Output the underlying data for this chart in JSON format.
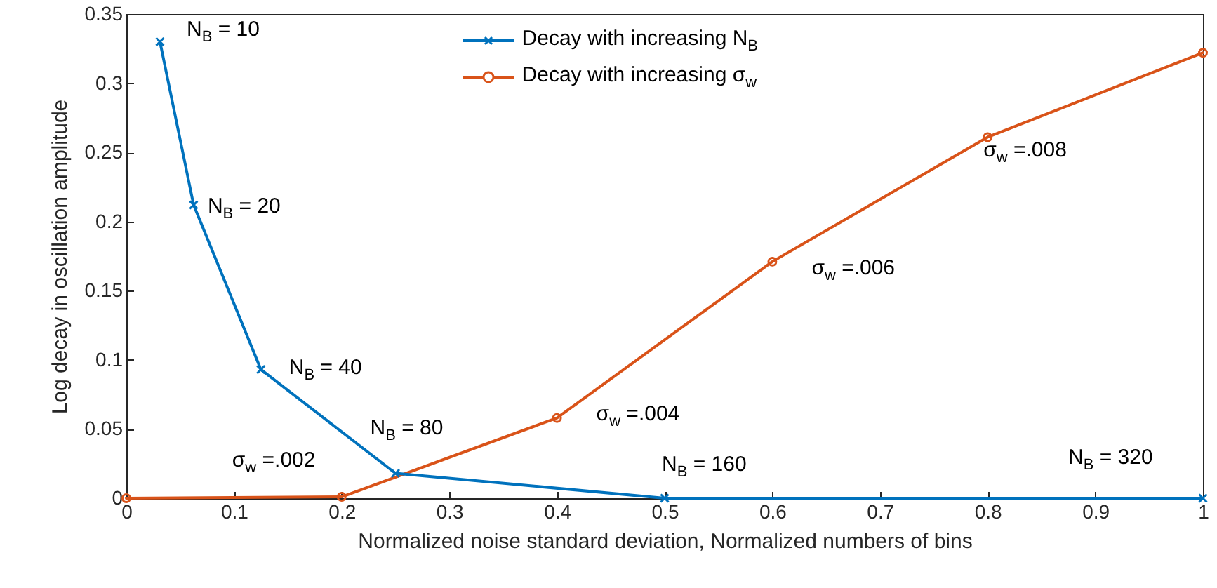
{
  "chart_data": {
    "type": "line",
    "xlabel": "Normalized noise standard deviation, Normalized numbers of bins",
    "ylabel": "Log decay in oscillation amplitude",
    "xlim": [
      0,
      1
    ],
    "xticks": [
      0,
      0.1,
      0.2,
      0.3,
      0.4,
      0.5,
      0.6,
      0.7,
      0.8,
      0.9,
      1
    ],
    "ylim": [
      0,
      0.35
    ],
    "yticks": [
      0,
      0.05,
      0.1,
      0.15,
      0.2,
      0.25,
      0.3,
      0.35
    ],
    "grid": false,
    "legend": "top",
    "line_style": "solid",
    "series": [
      {
        "name": "Decay with increasing N$_{B}$",
        "color": "#0072bd",
        "marker": "cross",
        "x": [
          0.03125,
          0.0625,
          0.125,
          0.25,
          0.5,
          1
        ],
        "values": [
          0.33,
          0.212,
          0.093,
          0.018,
          0,
          0
        ]
      },
      {
        "name": "Decay with increasing σ$_{w}$",
        "color": "#d95319",
        "marker": "circle",
        "x": [
          0,
          0.2,
          0.4,
          0.6,
          0.8,
          1
        ],
        "values": [
          0,
          0.001,
          0.058,
          0.171,
          0.261,
          0.322
        ]
      }
    ],
    "annotations": [
      {
        "text": "N$_{B}$ = 10",
        "x": 0.03125,
        "y": 0.33
      },
      {
        "text": "N$_{B}$ = 20",
        "x": 0.0625,
        "y": 0.212
      },
      {
        "text": "N$_{B}$ = 40",
        "x": 0.125,
        "y": 0.093
      },
      {
        "text": "N$_{B}$ = 80",
        "x": 0.25,
        "y": 0.018
      },
      {
        "text": "N$_{B}$ = 160",
        "x": 0.5,
        "y": 0
      },
      {
        "text": "N$_{B}$ = 320",
        "x": 1,
        "y": 0
      },
      {
        "text": "σ$_{w}$ =.002",
        "x": 0.2,
        "y": 0.001
      },
      {
        "text": "σ$_{w}$ =.004",
        "x": 0.4,
        "y": 0.058
      },
      {
        "text": "σ$_{w}$ =.006",
        "x": 0.6,
        "y": 0.171
      },
      {
        "text": "σ$_{w}$ =.008",
        "x": 0.8,
        "y": 0.261
      }
    ]
  }
}
